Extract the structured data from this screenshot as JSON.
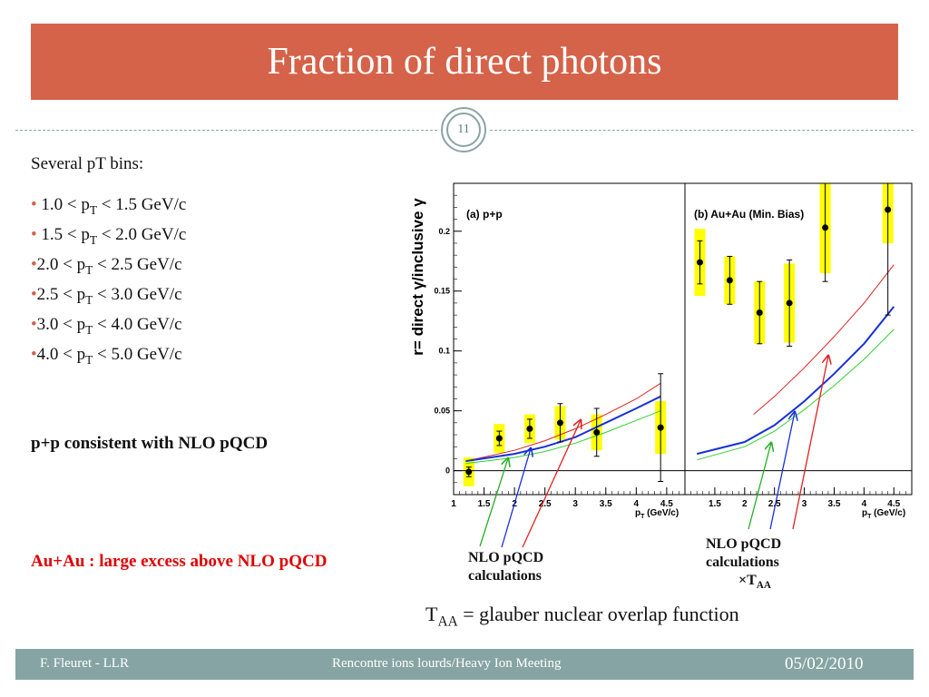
{
  "slide": {
    "title": "Fraction of direct photons",
    "number": "11",
    "intro": "Several pT bins:",
    "bins": [
      {
        "pre": "1.0 < p",
        "sub": "T",
        "post": " < 1.5 GeV/c"
      },
      {
        "pre": "1.5 < p",
        "sub": "T",
        "post": " < 2.0 GeV/c"
      },
      {
        "pre": "2.0 < p",
        "sub": "T",
        "post": " < 2.5 GeV/c"
      },
      {
        "pre": "2.5 < p",
        "sub": "T",
        "post": " < 3.0 GeV/c"
      },
      {
        "pre": "3.0 < p",
        "sub": "T",
        "post": " < 4.0 GeV/c"
      },
      {
        "pre": "4.0 < p",
        "sub": "T",
        "post": " < 5.0 GeV/c"
      }
    ],
    "pp_statement": "p+p consistent with NLO pQCD",
    "auau_statement": "Au+Au : large excess above NLO pQCD",
    "annotation_pp": {
      "line1": "NLO pQCD",
      "line2": "calculations"
    },
    "annotation_auau": {
      "line1": "NLO pQCD",
      "line2": "calculations",
      "line3_pre": "×T",
      "line3_sub": "AA"
    },
    "taa": {
      "pre": "T",
      "sub": "AA",
      "post": " = glauber nuclear overlap function"
    }
  },
  "footer": {
    "author": "F. Fleuret - LLR",
    "meeting": "Rencontre ions lourds/Heavy Ion Meeting",
    "date": "05/02/2010"
  },
  "colors": {
    "title_bg": "#d4634a",
    "footer_bg": "#86a4a3",
    "highlight": "#e00000",
    "accent": "#8aa5a3"
  },
  "chart_data": [
    {
      "type": "scatter",
      "title": "(a) p+p",
      "ylabel": "r= direct γ/inclusive γ",
      "xlabel": "p",
      "xlabel_sub": "T",
      "xlabel_unit": " (GeV/c)",
      "xlim": [
        1.0,
        4.8
      ],
      "ylim": [
        -0.02,
        0.24
      ],
      "xticks": [
        1,
        1.5,
        2,
        2.5,
        3,
        3.5,
        4,
        4.5
      ],
      "xtick_labels": [
        "1",
        "1.5",
        "2",
        "2.5",
        "3",
        "3.5",
        "4",
        "4.5"
      ],
      "yticks": [
        0,
        0.05,
        0.1,
        0.15,
        0.2
      ],
      "ytick_labels": [
        "0",
        "0.05",
        "0.1",
        "0.15",
        "0.2"
      ],
      "points": [
        {
          "x": 1.25,
          "y": -0.001,
          "stat": 0.004,
          "sys": 0.012
        },
        {
          "x": 1.75,
          "y": 0.027,
          "stat": 0.006,
          "sys": 0.012
        },
        {
          "x": 2.25,
          "y": 0.035,
          "stat": 0.008,
          "sys": 0.012
        },
        {
          "x": 2.75,
          "y": 0.04,
          "stat": 0.016,
          "sys": 0.014
        },
        {
          "x": 3.35,
          "y": 0.032,
          "stat": 0.02,
          "sys": 0.015
        },
        {
          "x": 4.4,
          "y": 0.036,
          "stat": 0.045,
          "sys": 0.022
        }
      ],
      "curves": [
        {
          "color": "#e02020",
          "width": 1,
          "points": [
            [
              1.2,
              0.008
            ],
            [
              2.0,
              0.017
            ],
            [
              2.5,
              0.025
            ],
            [
              3.0,
              0.035
            ],
            [
              3.5,
              0.047
            ],
            [
              4.0,
              0.06
            ],
            [
              4.4,
              0.073
            ]
          ]
        },
        {
          "color": "#1830d8",
          "width": 2,
          "points": [
            [
              1.2,
              0.008
            ],
            [
              2.0,
              0.014
            ],
            [
              2.5,
              0.02
            ],
            [
              3.0,
              0.028
            ],
            [
              3.5,
              0.04
            ],
            [
              4.0,
              0.052
            ],
            [
              4.4,
              0.062
            ]
          ]
        },
        {
          "color": "#30d030",
          "width": 1,
          "points": [
            [
              1.2,
              0.006
            ],
            [
              2.0,
              0.011
            ],
            [
              2.5,
              0.016
            ],
            [
              3.0,
              0.023
            ],
            [
              3.5,
              0.032
            ],
            [
              4.0,
              0.042
            ],
            [
              4.4,
              0.05
            ]
          ]
        }
      ]
    },
    {
      "type": "scatter",
      "title": "(b) Au+Au (Min. Bias)",
      "xlabel": "p",
      "xlabel_sub": "T",
      "xlabel_unit": " (GeV/c)",
      "xlim": [
        1.0,
        4.8
      ],
      "ylim": [
        -0.02,
        0.24
      ],
      "xticks": [
        1.5,
        2,
        2.5,
        3,
        3.5,
        4,
        4.5
      ],
      "xtick_labels": [
        "1.5",
        "2",
        "2.5",
        "3",
        "3.5",
        "4",
        "4.5"
      ],
      "points": [
        {
          "x": 1.25,
          "y": 0.174,
          "stat": 0.018,
          "sys": 0.028
        },
        {
          "x": 1.75,
          "y": 0.159,
          "stat": 0.02,
          "sys": 0.02
        },
        {
          "x": 2.25,
          "y": 0.132,
          "stat": 0.026,
          "sys": 0.026
        },
        {
          "x": 2.75,
          "y": 0.14,
          "stat": 0.036,
          "sys": 0.033
        },
        {
          "x": 3.35,
          "y": 0.203,
          "stat": 0.045,
          "sys": 0.038
        },
        {
          "x": 4.4,
          "y": 0.218,
          "stat": 0.088,
          "sys": 0.028
        }
      ],
      "curves": [
        {
          "color": "#e02020",
          "width": 1,
          "points": [
            [
              2.15,
              0.047
            ],
            [
              2.5,
              0.062
            ],
            [
              3.0,
              0.086
            ],
            [
              3.5,
              0.112
            ],
            [
              4.0,
              0.14
            ],
            [
              4.5,
              0.172
            ]
          ]
        },
        {
          "color": "#1830d8",
          "width": 2,
          "points": [
            [
              1.2,
              0.014
            ],
            [
              2.0,
              0.024
            ],
            [
              2.5,
              0.038
            ],
            [
              3.0,
              0.058
            ],
            [
              3.5,
              0.081
            ],
            [
              4.0,
              0.106
            ],
            [
              4.5,
              0.137
            ]
          ]
        },
        {
          "color": "#30d030",
          "width": 1,
          "points": [
            [
              1.2,
              0.009
            ],
            [
              2.0,
              0.02
            ],
            [
              2.5,
              0.033
            ],
            [
              3.0,
              0.051
            ],
            [
              3.5,
              0.071
            ],
            [
              4.0,
              0.093
            ],
            [
              4.5,
              0.118
            ]
          ]
        }
      ]
    }
  ]
}
